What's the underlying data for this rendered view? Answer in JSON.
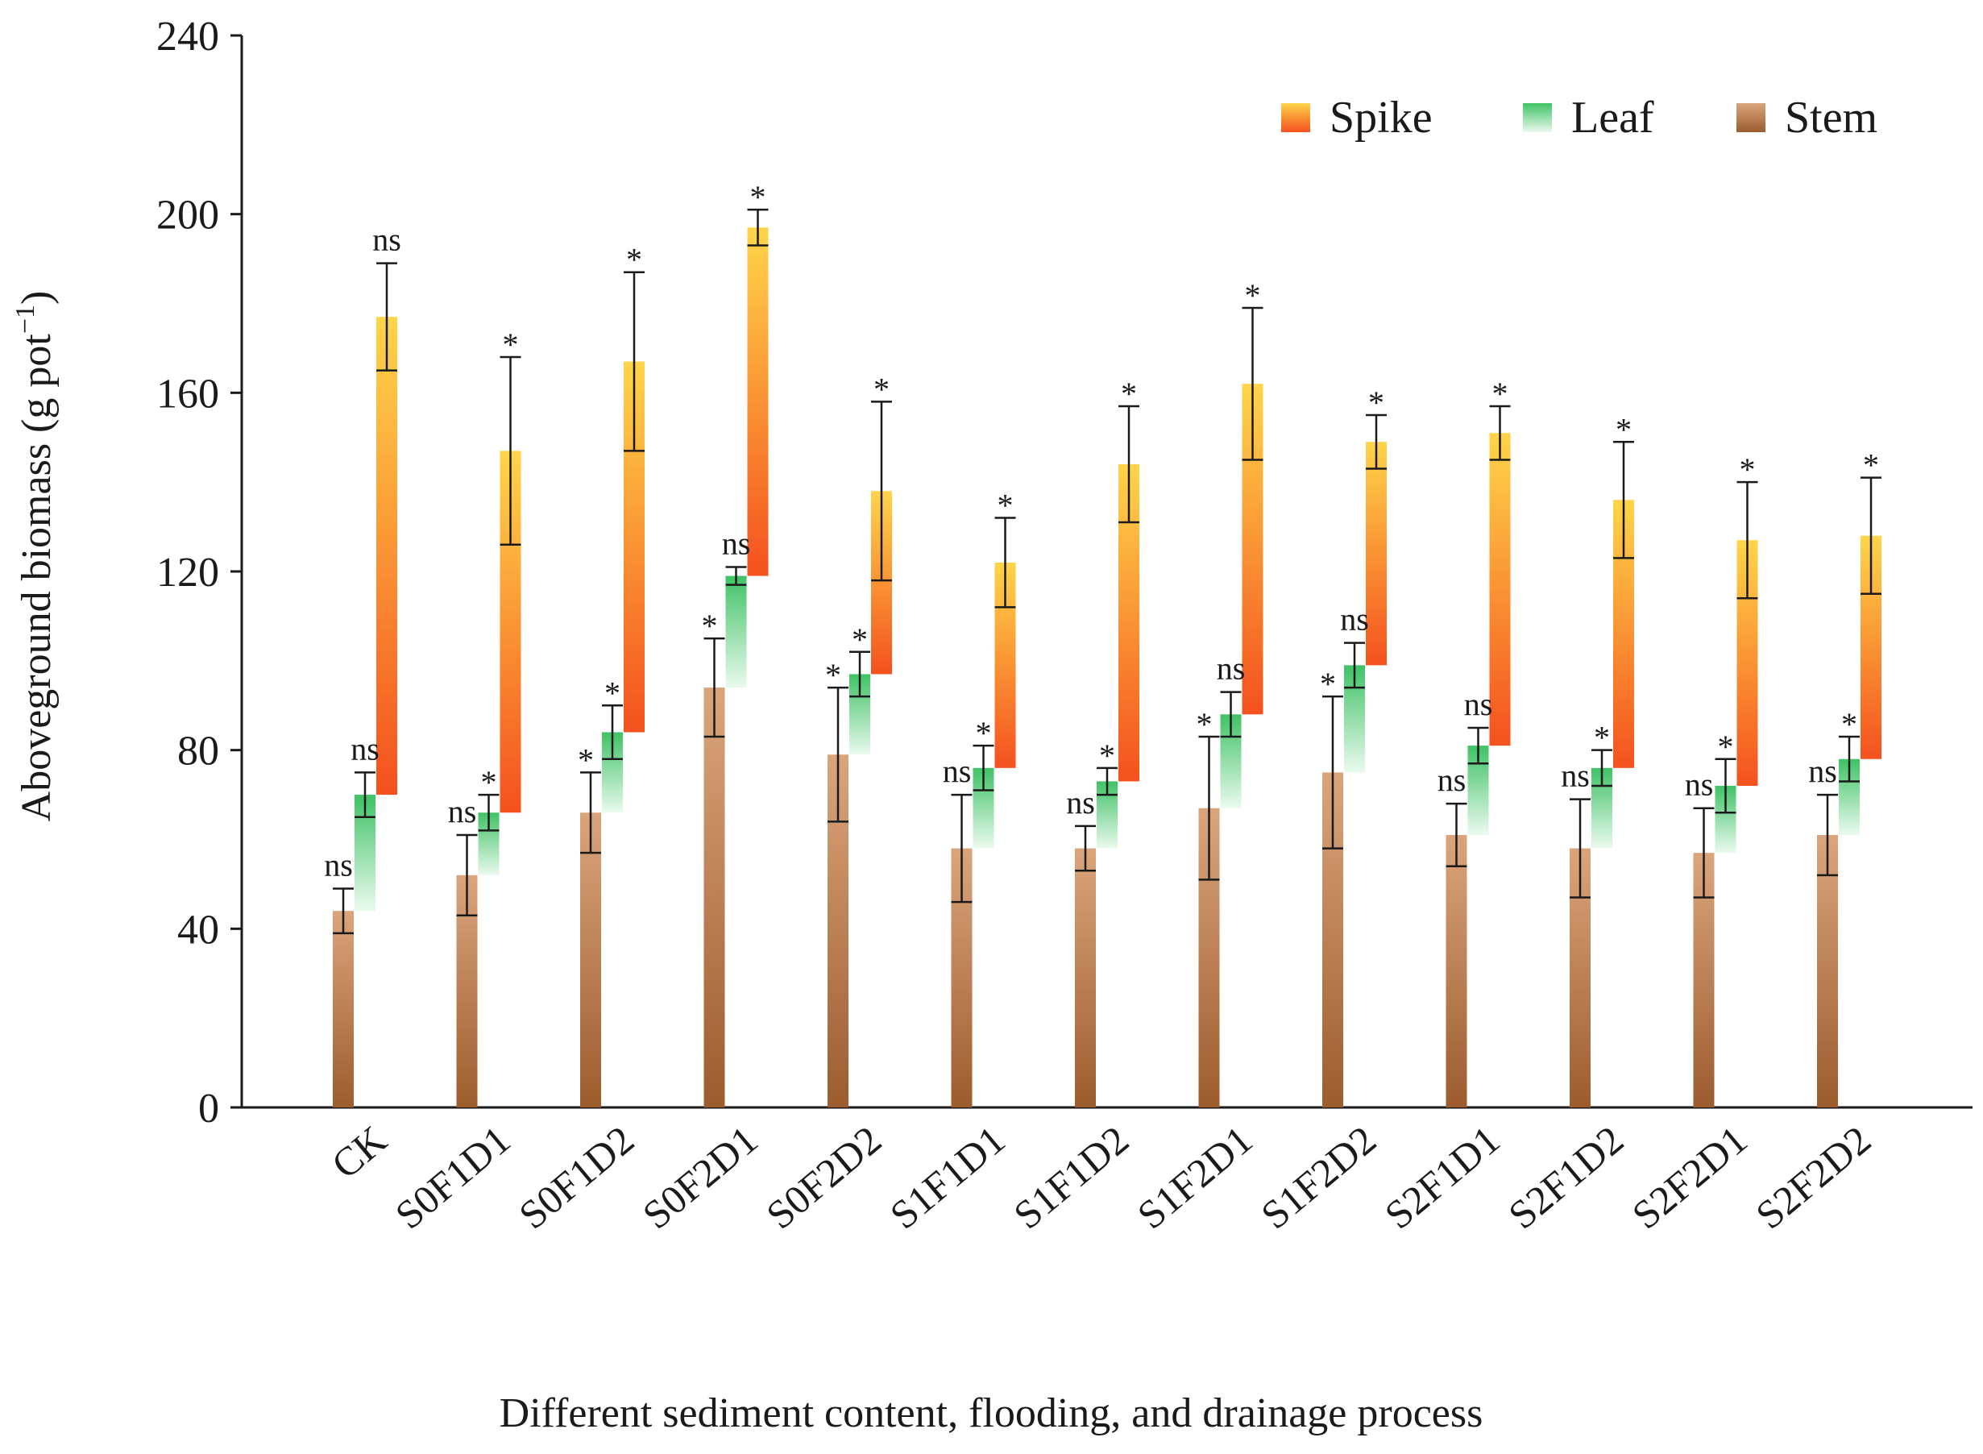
{
  "chart_data": {
    "type": "bar",
    "title": "",
    "xlabel": "Different sediment content, flooding, and drainage process",
    "ylabel_main": "Aboveground biomass (g pot",
    "ylabel_sup": "−1",
    "ylabel_close": ")",
    "ylim": [
      0,
      240
    ],
    "yticks": [
      "0",
      "40",
      "80",
      "120",
      "160",
      "200",
      "240"
    ],
    "ytick_values": [
      0,
      40,
      80,
      120,
      160,
      200,
      240
    ],
    "categories": [
      "CK",
      "S0F1D1",
      "S0F1D2",
      "S0F2D1",
      "S0F2D2",
      "S1F1D1",
      "S1F1D2",
      "S1F2D1",
      "S1F2D2",
      "S2F1D1",
      "S2F1D2",
      "S2F2D1",
      "S2F2D2"
    ],
    "legend": [
      {
        "name": "Spike",
        "color_top": "#ffd54a",
        "color_bottom": "#f4511e"
      },
      {
        "name": "Leaf",
        "color_top": "#3fc265",
        "color_bottom": "#eafaee"
      },
      {
        "name": "Stem",
        "color_top": "#dba57c",
        "color_bottom": "#9c5c2e"
      }
    ],
    "legend_position": "top-right",
    "series": [
      {
        "name": "Stem",
        "stacked_base": [
          0,
          0,
          0,
          0,
          0,
          0,
          0,
          0,
          0,
          0,
          0,
          0,
          0
        ],
        "values": [
          44,
          52,
          66,
          94,
          79,
          58,
          58,
          67,
          75,
          61,
          58,
          57,
          61
        ],
        "error": [
          5,
          9,
          9,
          11,
          15,
          12,
          5,
          16,
          17,
          7,
          11,
          10,
          9
        ],
        "significance": [
          "ns",
          "ns",
          "*",
          "*",
          "*",
          "ns",
          "ns",
          "*",
          "*",
          "ns",
          "ns",
          "ns",
          "ns"
        ]
      },
      {
        "name": "Leaf",
        "stacked_base": [
          44,
          52,
          66,
          94,
          79,
          58,
          58,
          67,
          75,
          61,
          58,
          57,
          61
        ],
        "values": [
          26,
          14,
          18,
          25,
          18,
          18,
          15,
          21,
          24,
          20,
          18,
          15,
          17
        ],
        "error": [
          5,
          4,
          6,
          2,
          5,
          5,
          3,
          5,
          5,
          4,
          4,
          6,
          5
        ],
        "significance": [
          "ns",
          "*",
          "*",
          "ns",
          "*",
          "*",
          "*",
          "ns",
          "ns",
          "ns",
          "*",
          "*",
          "*"
        ]
      },
      {
        "name": "Spike",
        "stacked_base": [
          70,
          66,
          84,
          119,
          97,
          76,
          73,
          88,
          99,
          81,
          76,
          72,
          78
        ],
        "values": [
          107,
          81,
          83,
          78,
          41,
          46,
          71,
          74,
          50,
          70,
          60,
          55,
          50
        ],
        "error": [
          12,
          21,
          20,
          4,
          20,
          10,
          13,
          17,
          6,
          6,
          13,
          13,
          13
        ],
        "significance": [
          "ns",
          "*",
          "*",
          "*",
          "*",
          "*",
          "*",
          "*",
          "*",
          "*",
          "*",
          "*",
          "*"
        ]
      }
    ]
  }
}
